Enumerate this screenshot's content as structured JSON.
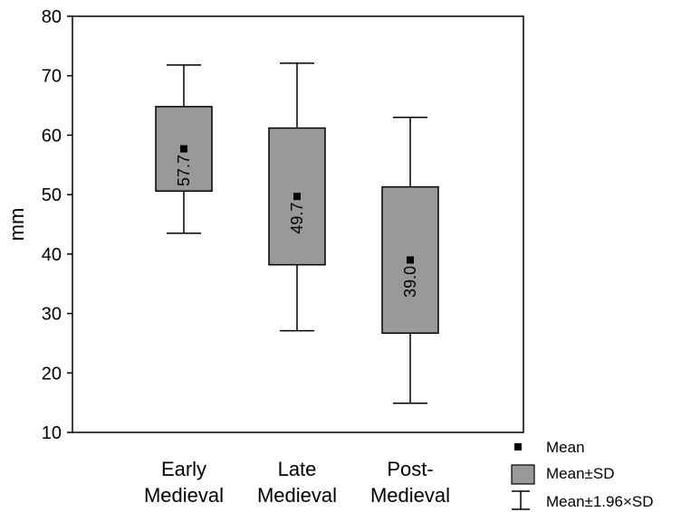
{
  "chart_data": {
    "type": "box",
    "ylabel": "mm",
    "ylim": [
      10,
      80
    ],
    "yticks": [
      10,
      20,
      30,
      40,
      50,
      60,
      70,
      80
    ],
    "categories": [
      [
        "Early",
        "Medieval"
      ],
      [
        "Late",
        "Medieval"
      ],
      [
        "Post-",
        "Medieval"
      ]
    ],
    "boxes": [
      {
        "mean": 57.7,
        "label": "57.7",
        "sd_low": 50.6,
        "sd_high": 64.8,
        "ci_low": 43.5,
        "ci_high": 71.8
      },
      {
        "mean": 49.7,
        "label": "49.7",
        "sd_low": 38.2,
        "sd_high": 61.2,
        "ci_low": 27.1,
        "ci_high": 72.1
      },
      {
        "mean": 39.0,
        "label": "39.0",
        "sd_low": 26.7,
        "sd_high": 51.3,
        "ci_low": 14.9,
        "ci_high": 63.0
      }
    ],
    "legend": {
      "placement": "bottom-right",
      "items": [
        "Mean",
        "Mean±SD",
        "Mean±1.96×SD"
      ]
    },
    "colors": {
      "box_fill": "#999999",
      "stroke": "#000000"
    },
    "grid": false
  }
}
